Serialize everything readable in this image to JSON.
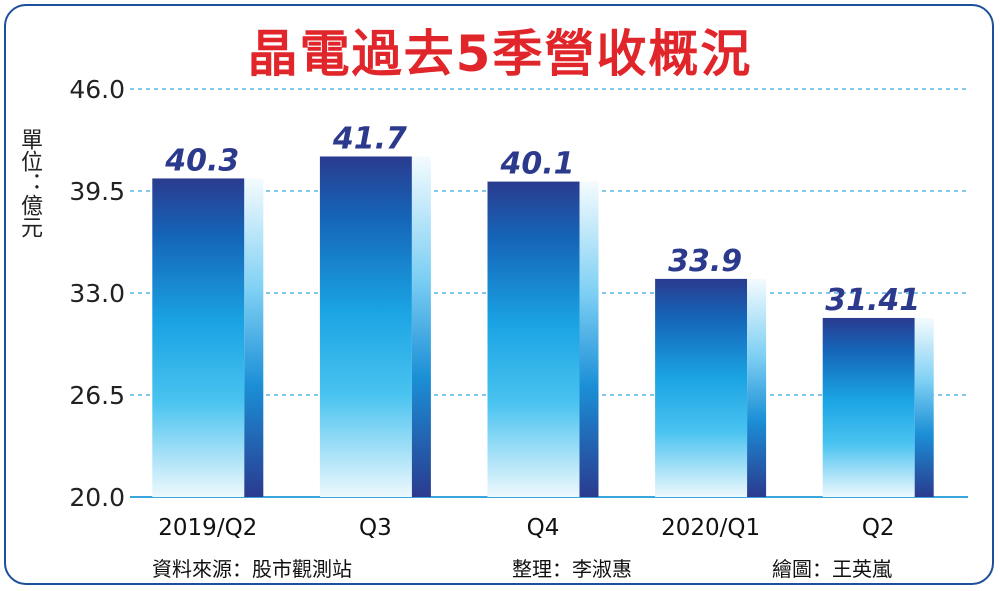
{
  "title": "晶電過去5季營收概況",
  "unit_label": "單位：億元",
  "footer": {
    "source": "資料來源：股市觀測站",
    "editor": "整理：李淑惠",
    "artist": "繪圖：王英嵐"
  },
  "colors": {
    "title": "#e0262b",
    "bar_dark": "#2a3b8f",
    "bar_mid": "#1b8fd6",
    "bar_light": "#e8f6fd",
    "value_label": "#2b3a8c",
    "gridline": "#3aa7dc"
  },
  "chart_data": {
    "type": "bar",
    "title": "晶電過去5季營收概況",
    "xlabel": "",
    "ylabel": "單位：億元",
    "categories": [
      "2019/Q2",
      "Q3",
      "Q4",
      "2020/Q1",
      "Q2"
    ],
    "values": [
      40.3,
      41.7,
      40.1,
      33.9,
      31.41
    ],
    "value_labels": [
      "40.3",
      "41.7",
      "40.1",
      "33.9",
      "31.41"
    ],
    "ylim": [
      20.0,
      46.0
    ],
    "yticks": [
      "20.0",
      "26.5",
      "33.0",
      "39.5",
      "46.0"
    ],
    "grid": true
  }
}
